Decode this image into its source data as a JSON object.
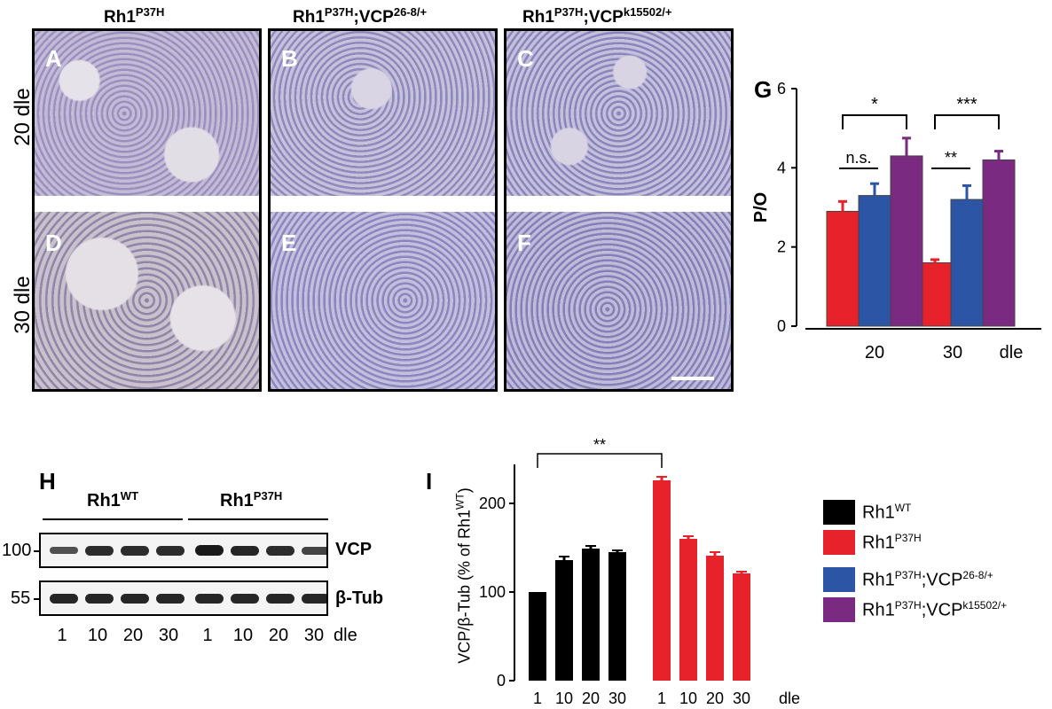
{
  "histology": {
    "columns": [
      {
        "base": "Rh1",
        "sup": "P37H",
        "base2": "",
        "sup2": ""
      },
      {
        "base": "Rh1",
        "sup": "P37H",
        "base2": ";VCP",
        "sup2": "26-8/+"
      },
      {
        "base": "Rh1",
        "sup": "P37H",
        "base2": ";VCP",
        "sup2": "k15502/+"
      }
    ],
    "rows": [
      "20 dle",
      "30 dle"
    ],
    "panel_letters": [
      "A",
      "B",
      "C",
      "D",
      "E",
      "F"
    ]
  },
  "panel_labels": {
    "g": "G",
    "h": "H",
    "i": "I"
  },
  "chart_G": {
    "type": "bar",
    "ylabel": "P/O",
    "ylim": [
      0,
      6
    ],
    "yticks": [
      "0",
      "2",
      "4",
      "6"
    ],
    "groups": [
      "20",
      "30"
    ],
    "axis_unit": "dle",
    "series": [
      {
        "values": [
          2.9,
          1.6
        ],
        "errors": [
          0.25,
          0.08
        ],
        "color": "#e8222b"
      },
      {
        "values": [
          3.3,
          3.2
        ],
        "errors": [
          0.3,
          0.35
        ],
        "color": "#2d55a5"
      },
      {
        "values": [
          4.3,
          4.2
        ],
        "errors": [
          0.45,
          0.22
        ],
        "color": "#7a2a80"
      }
    ],
    "significance": [
      {
        "label": "*"
      },
      {
        "label": "n.s."
      },
      {
        "label": "***"
      },
      {
        "label": "**"
      }
    ]
  },
  "western_H": {
    "groups": [
      {
        "base": "Rh1",
        "sup": "WT"
      },
      {
        "base": "Rh1",
        "sup": "P37H"
      }
    ],
    "blots": [
      {
        "marker": "100",
        "label": "VCP",
        "intensities": [
          0.55,
          0.85,
          0.85,
          0.85,
          1.0,
          0.9,
          0.85,
          0.65
        ]
      },
      {
        "marker": "55",
        "label": "β-Tub",
        "intensities": [
          0.9,
          0.9,
          0.9,
          0.9,
          0.9,
          0.9,
          0.9,
          0.9
        ]
      }
    ],
    "lanes": [
      "1",
      "10",
      "20",
      "30",
      "1",
      "10",
      "20",
      "30"
    ],
    "lane_unit": "dle"
  },
  "chart_I": {
    "type": "bar",
    "ylabel_base": "VCP/β-Tub (% of Rh1",
    "ylabel_sup": "WT",
    "ylabel_end": ")",
    "ylim": [
      0,
      240
    ],
    "yticks": [
      "0",
      "100",
      "200"
    ],
    "series": [
      {
        "name": "Rh1WT",
        "color": "#000000",
        "categories": [
          "1",
          "10",
          "20",
          "30"
        ],
        "values": [
          100,
          136,
          149,
          145
        ],
        "errors": [
          0,
          4,
          3,
          2
        ]
      },
      {
        "name": "Rh1P37H",
        "color": "#e8222b",
        "categories": [
          "1",
          "10",
          "20",
          "30"
        ],
        "values": [
          226,
          160,
          141,
          121
        ],
        "errors": [
          4,
          3,
          4,
          2
        ]
      }
    ],
    "axis_unit": "dle",
    "significance": [
      {
        "label": "**"
      }
    ]
  },
  "legend": [
    {
      "base": "Rh1",
      "sup": "WT",
      "base2": "",
      "sup2": "",
      "color": "#000000"
    },
    {
      "base": "Rh1",
      "sup": "P37H",
      "base2": "",
      "sup2": "",
      "color": "#e8222b"
    },
    {
      "base": "Rh1",
      "sup": "P37H",
      "base2": ";VCP",
      "sup2": "26-8/+",
      "color": "#2d55a5"
    },
    {
      "base": "Rh1",
      "sup": "P37H",
      "base2": ";VCP",
      "sup2": "k15502/+",
      "color": "#7a2a80"
    }
  ]
}
